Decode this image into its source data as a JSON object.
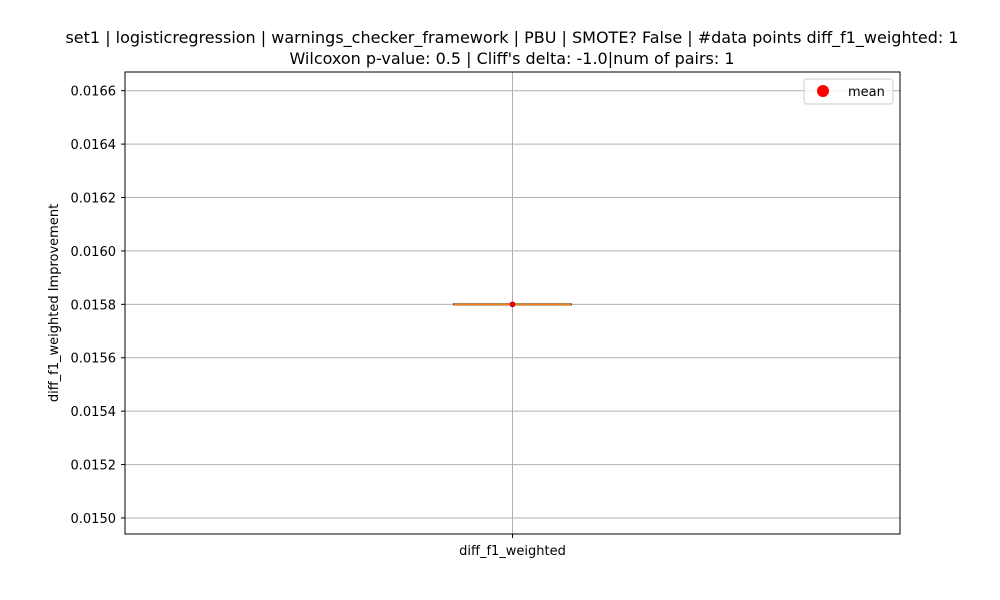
{
  "chart_data": {
    "type": "box",
    "title_line1": "set1 | logisticregression | warnings_checker_framework | PBU | SMOTE? False | #data points diff_f1_weighted: 1",
    "title_line2": "Wilcoxon p-value: 0.5 | Cliff's delta: -1.0|num of pairs: 1",
    "xlabel": "",
    "ylabel": "diff_f1_weighted Improvement",
    "categories": [
      "diff_f1_weighted"
    ],
    "ylim": [
      0.01494,
      0.01667
    ],
    "yticks": [
      0.015,
      0.0152,
      0.0154,
      0.0156,
      0.0158,
      0.016,
      0.0162,
      0.0164,
      0.0166
    ],
    "ytick_labels": [
      "0.0150",
      "0.0152",
      "0.0154",
      "0.0156",
      "0.0158",
      "0.0160",
      "0.0162",
      "0.0164",
      "0.0166"
    ],
    "grid": true,
    "legend": {
      "entries": [
        "mean"
      ],
      "placement": "top-right"
    },
    "series": [
      {
        "q1": 0.0158,
        "median": 0.0158,
        "q3": 0.0158,
        "whisker_low": 0.0158,
        "whisker_high": 0.0158,
        "mean": 0.0158
      }
    ],
    "colors": {
      "box": "#000000",
      "median": "#ff7f0e",
      "mean": "#ff0000",
      "grid": "#b0b0b0"
    }
  }
}
